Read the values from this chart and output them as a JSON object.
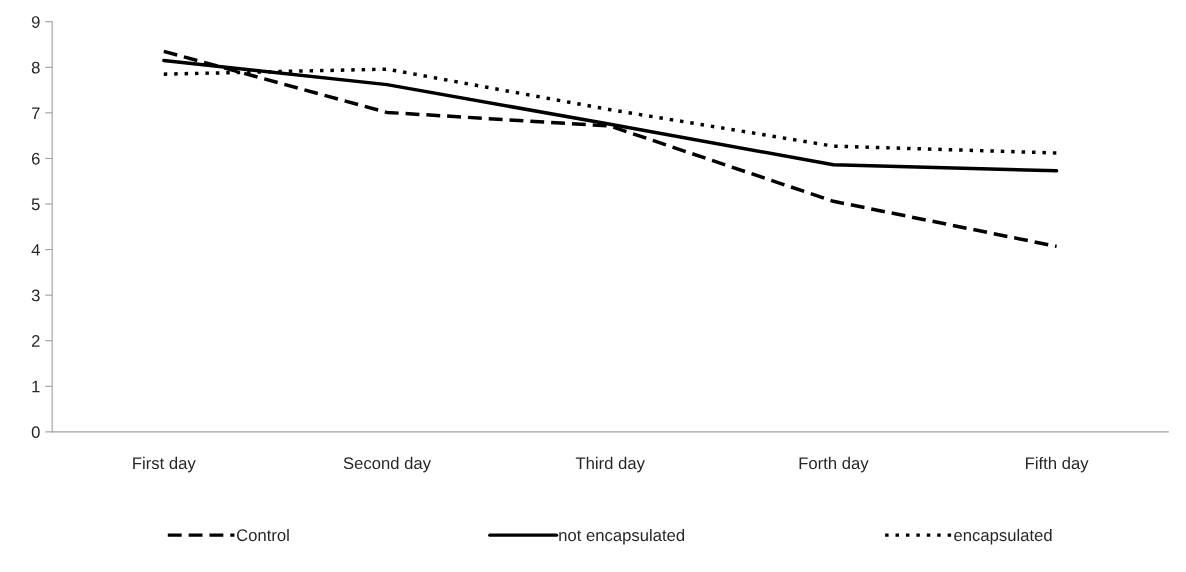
{
  "chart_data": {
    "type": "line",
    "categories": [
      "First day",
      "Second day",
      "Third day",
      "Forth day",
      "Fifth day"
    ],
    "ylim": [
      0,
      9
    ],
    "yticks": [
      0,
      1,
      2,
      3,
      4,
      5,
      6,
      7,
      8,
      9
    ],
    "grid": false,
    "legend": "bottom",
    "marker": "none",
    "series": [
      {
        "name": "Control",
        "color": "#000000",
        "line_style": "dashed",
        "values": [
          8.35,
          7.01,
          6.71,
          5.06,
          4.07
        ]
      },
      {
        "name": "not encapsulated",
        "color": "#000000",
        "line_style": "solid",
        "values": [
          8.15,
          7.62,
          6.75,
          5.86,
          5.73
        ]
      },
      {
        "name": "encapsulated",
        "color": "#000000",
        "line_style": "dotted",
        "values": [
          7.85,
          7.96,
          7.07,
          6.27,
          6.12
        ]
      }
    ]
  }
}
